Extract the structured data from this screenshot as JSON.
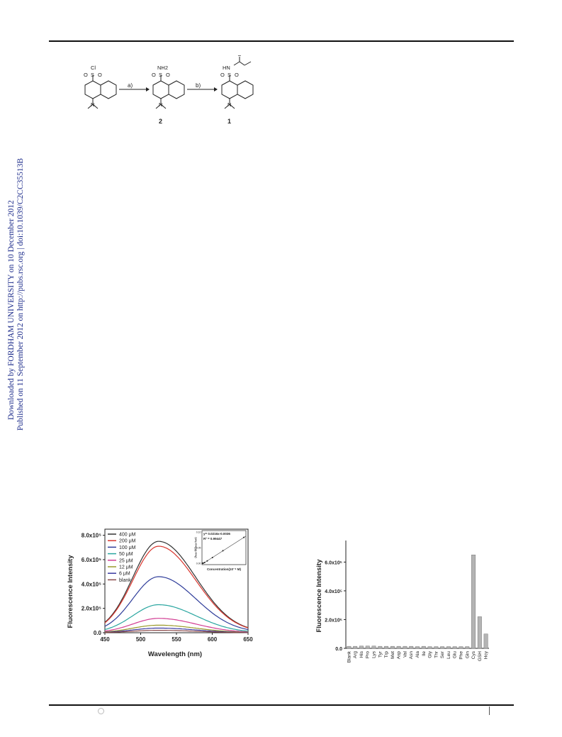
{
  "sidebar": {
    "downloaded": "Downloaded by FORDHAM UNIVERSITY on 10 December 2012",
    "published": "Published on 11 September 2012 on http://pubs.rsc.org | doi:10.1039/C2CC35513B"
  },
  "scheme": {
    "step_a": "a)",
    "step_b": "b)",
    "compound_2": "2",
    "compound_1": "1",
    "atoms": {
      "cl": "Cl",
      "o": "O",
      "s": "S",
      "n": "N",
      "nh2": "NH2",
      "hn": "HN"
    }
  },
  "chart_data": [
    {
      "type": "line",
      "xlabel": "Wavelength (nm)",
      "ylabel": "Fluorescence Intensity",
      "xlim": [
        450,
        650
      ],
      "ylim": [
        0,
        850000
      ],
      "x_ticks": [
        "450",
        "500",
        "550",
        "600",
        "650"
      ],
      "y_ticks": [
        {
          "v": 0,
          "label": "0.0"
        },
        {
          "v": 200000,
          "label": "2.0x10⁵"
        },
        {
          "v": 400000,
          "label": "4.0x10⁵"
        },
        {
          "v": 600000,
          "label": "6.0x10⁵"
        },
        {
          "v": 800000,
          "label": "8.0x10⁵"
        }
      ],
      "legend_position": "top-left",
      "peak_x": 525,
      "series": [
        {
          "name": "400 μM",
          "color": "#333333",
          "peak": 750000
        },
        {
          "name": "200 μM",
          "color": "#d9362e",
          "peak": 710000
        },
        {
          "name": "100 μM",
          "color": "#2f3d9a",
          "peak": 460000
        },
        {
          "name": "50 μM",
          "color": "#2aa6a0",
          "peak": 230000
        },
        {
          "name": "25 μM",
          "color": "#d23d93",
          "peak": 118000
        },
        {
          "name": "12 μM",
          "color": "#9a9a2a",
          "peak": 62000
        },
        {
          "name": "6 μM",
          "color": "#3a3aa0",
          "peak": 38000
        },
        {
          "name": "blank",
          "color": "#8a4a4a",
          "peak": 20000
        }
      ],
      "inset": {
        "equation": "y= 0.0216x-0.0036",
        "r2": "R² = 0.99447",
        "xlabel": "Concentration(10⁻⁴ M)",
        "ylabel": "(Iₘₐₓ-I)/(Iₘₐₓ-Iₘᵢₙ)",
        "y_ticks": [
          "0.10",
          "0.05",
          "0.00"
        ],
        "points": [
          [
            0.06,
            0.0
          ],
          [
            0.12,
            0.0
          ],
          [
            0.25,
            0.002
          ],
          [
            0.5,
            0.007
          ],
          [
            1.0,
            0.018
          ],
          [
            2.0,
            0.04
          ],
          [
            4.0,
            0.083
          ]
        ]
      }
    },
    {
      "type": "bar",
      "ylabel": "Fluorescence Intensity",
      "ylim": [
        0,
        750000
      ],
      "y_ticks": [
        {
          "v": 0,
          "label": "0.0"
        },
        {
          "v": 200000,
          "label": "2.0x10⁵"
        },
        {
          "v": 400000,
          "label": "4.0x10⁵"
        },
        {
          "v": 600000,
          "label": "6.0x10⁵"
        }
      ],
      "categories": [
        "Blank",
        "Arg",
        "His",
        "Pro",
        "Lys",
        "Tyr",
        "Trp",
        "Met",
        "Asp",
        "Val",
        "Asn",
        "Ala",
        "Ile",
        "Gly",
        "Thr",
        "Ser",
        "Leu",
        "Glu",
        "Phe",
        "Gln",
        "Cys",
        "GSH",
        "Hcy"
      ],
      "values": [
        14000,
        14000,
        16000,
        16000,
        16000,
        14000,
        14000,
        14000,
        14000,
        14000,
        14000,
        12000,
        14000,
        12000,
        12000,
        12000,
        12000,
        12000,
        12000,
        12000,
        650000,
        220000,
        100000
      ],
      "bar_color": "#b4b4b4"
    }
  ]
}
